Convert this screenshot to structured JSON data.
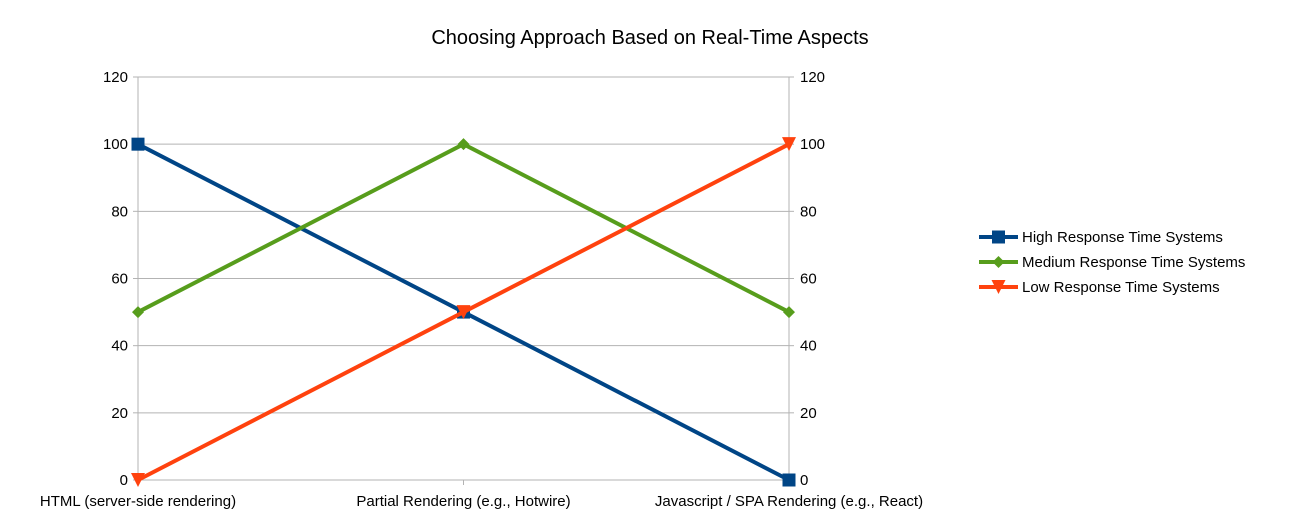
{
  "chart_data": {
    "type": "line",
    "title": "Choosing Approach Based on Real-Time Aspects",
    "xlabel": "",
    "ylabel": "",
    "categories": [
      "HTML (server-side rendering)",
      "Partial Rendering (e.g., Hotwire)",
      "Javascript / SPA Rendering (e.g., React)"
    ],
    "ylim": [
      0,
      120
    ],
    "yticks": [
      0,
      20,
      40,
      60,
      80,
      100,
      120
    ],
    "secondary_y_axis": true,
    "grid": "horizontal",
    "legend_position": "right",
    "series": [
      {
        "name": "High Response Time Systems",
        "values": [
          100,
          50,
          0
        ],
        "color": "#004586",
        "marker": "square"
      },
      {
        "name": "Medium Response Time Systems",
        "values": [
          50,
          100,
          50
        ],
        "color": "#579d1c",
        "marker": "diamond"
      },
      {
        "name": "Low Response Time Systems",
        "values": [
          0,
          50,
          100
        ],
        "color": "#ff420e",
        "marker": "triangle-down"
      }
    ]
  }
}
